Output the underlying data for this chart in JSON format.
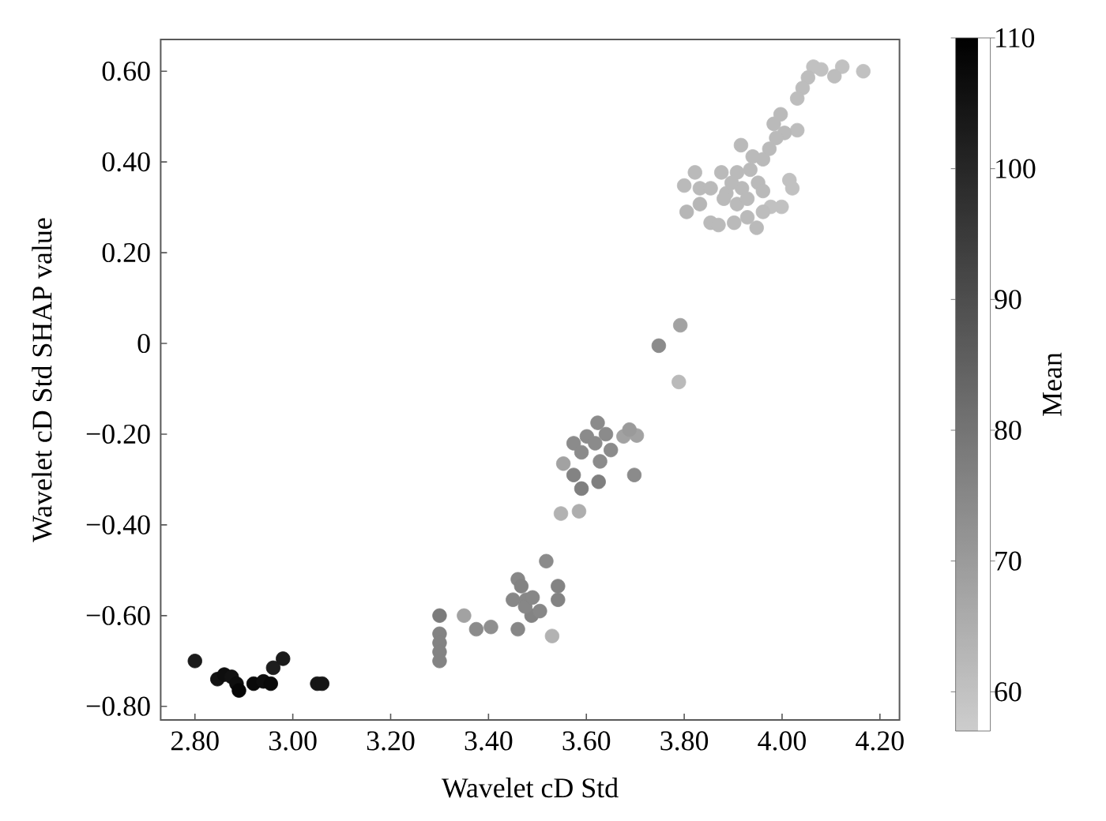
{
  "chart_data": {
    "type": "scatter",
    "xlabel": "Wavelet cD Std",
    "ylabel": "Wavelet cD Std SHAP value",
    "clabel": "Mean",
    "marker": "circle",
    "x": [
      2.8,
      2.846,
      2.86,
      2.875,
      2.885,
      2.89,
      2.92,
      2.94,
      2.955,
      2.96,
      2.98,
      3.05,
      3.06,
      3.3,
      3.3,
      3.3,
      3.3,
      3.3,
      3.35,
      3.375,
      3.405,
      3.46,
      3.45,
      3.477,
      3.467,
      3.46,
      3.488,
      3.505,
      3.518,
      3.542,
      3.542,
      3.53,
      3.475,
      3.49,
      3.548,
      3.585,
      3.553,
      3.574,
      3.59,
      3.625,
      3.623,
      3.601,
      3.574,
      3.618,
      3.65,
      3.628,
      3.59,
      3.64,
      3.676,
      3.703,
      3.688,
      3.698,
      3.748,
      3.792,
      3.789,
      4.166,
      4.123,
      4.107,
      4.064,
      4.08,
      4.053,
      4.042,
      4.031,
      3.997,
      4.031,
      4.005,
      3.988,
      3.916,
      3.974,
      3.961,
      3.822,
      3.8,
      3.832,
      3.876,
      3.908,
      3.935,
      3.951,
      3.918,
      3.886,
      3.854,
      4.015,
      4.021,
      3.999,
      3.977,
      3.961,
      3.832,
      3.805,
      3.854,
      3.87,
      3.902,
      3.929,
      3.948,
      3.908,
      3.881,
      3.929,
      3.897,
      3.961,
      3.94,
      3.983
    ],
    "values": [
      -0.7,
      -0.74,
      -0.73,
      -0.735,
      -0.75,
      -0.765,
      -0.75,
      -0.745,
      -0.75,
      -0.715,
      -0.695,
      -0.75,
      -0.75,
      -0.6,
      -0.64,
      -0.66,
      -0.68,
      -0.7,
      -0.6,
      -0.63,
      -0.625,
      -0.52,
      -0.565,
      -0.565,
      -0.535,
      -0.63,
      -0.6,
      -0.59,
      -0.48,
      -0.535,
      -0.565,
      -0.645,
      -0.58,
      -0.56,
      -0.375,
      -0.37,
      -0.265,
      -0.29,
      -0.32,
      -0.305,
      -0.175,
      -0.205,
      -0.22,
      -0.22,
      -0.235,
      -0.26,
      -0.24,
      -0.2,
      -0.205,
      -0.203,
      -0.19,
      -0.29,
      -0.005,
      0.04,
      -0.085,
      0.6,
      0.61,
      0.589,
      0.61,
      0.604,
      0.586,
      0.563,
      0.54,
      0.505,
      0.47,
      0.464,
      0.453,
      0.437,
      0.429,
      0.406,
      0.377,
      0.348,
      0.342,
      0.377,
      0.377,
      0.383,
      0.354,
      0.342,
      0.331,
      0.342,
      0.36,
      0.342,
      0.301,
      0.301,
      0.29,
      0.307,
      0.29,
      0.266,
      0.261,
      0.266,
      0.278,
      0.255,
      0.307,
      0.319,
      0.319,
      0.354,
      0.336,
      0.412,
      0.484
    ],
    "cvalues": [
      103,
      105,
      106,
      105,
      106,
      108,
      107,
      106,
      107,
      102,
      103,
      104,
      104,
      78,
      76,
      76,
      76,
      76,
      68,
      74,
      73,
      75,
      75,
      75,
      76,
      75,
      76,
      75,
      74,
      76,
      76,
      64,
      75,
      75,
      64,
      65,
      68,
      76,
      77,
      77,
      74,
      74,
      74,
      74,
      74,
      74,
      74,
      74,
      68,
      68,
      70,
      74,
      74,
      68,
      62,
      60,
      60,
      61,
      60,
      60,
      61,
      61,
      61,
      62,
      61,
      62,
      62,
      62,
      62,
      62,
      62,
      62,
      62,
      62,
      62,
      62,
      62,
      62,
      62,
      62,
      60,
      60,
      60,
      60,
      61,
      63,
      63,
      62,
      62,
      62,
      62,
      62,
      62,
      62,
      62,
      62,
      62,
      62,
      62
    ],
    "xlim": [
      2.73,
      4.24
    ],
    "ylim": [
      -0.83,
      0.67
    ],
    "xticks": [
      {
        "value": 2.8,
        "label": "2.80"
      },
      {
        "value": 3.0,
        "label": "3.00"
      },
      {
        "value": 3.2,
        "label": "3.20"
      },
      {
        "value": 3.4,
        "label": "3.40"
      },
      {
        "value": 3.6,
        "label": "3.60"
      },
      {
        "value": 3.8,
        "label": "3.80"
      },
      {
        "value": 4.0,
        "label": "4.00"
      },
      {
        "value": 4.2,
        "label": "4.20"
      }
    ],
    "yticks": [
      {
        "value": -0.8,
        "label": "−0.80"
      },
      {
        "value": -0.6,
        "label": "−0.60"
      },
      {
        "value": -0.4,
        "label": "−0.40"
      },
      {
        "value": -0.2,
        "label": "−0.20"
      },
      0,
      {
        "value": 0.2,
        "label": "0.20"
      },
      {
        "value": 0.4,
        "label": "0.40"
      },
      {
        "value": 0.6,
        "label": "0.60"
      }
    ],
    "clim": [
      57,
      110
    ],
    "cticks": [
      60,
      70,
      80,
      90,
      100,
      110
    ]
  }
}
